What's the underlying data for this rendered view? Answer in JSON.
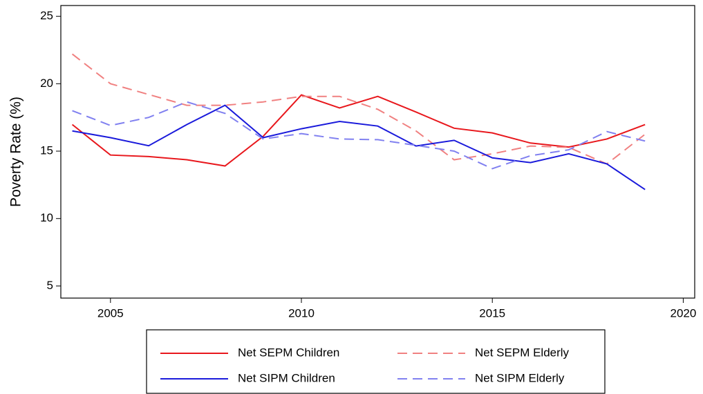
{
  "chart_data": {
    "type": "line",
    "y_label": "Poverty Rate (%)",
    "x": [
      2004,
      2005,
      2006,
      2007,
      2008,
      2009,
      2010,
      2011,
      2012,
      2013,
      2014,
      2015,
      2016,
      2017,
      2018,
      2019
    ],
    "xlim": [
      2003.7,
      2020.3
    ],
    "xticks": [
      2005,
      2010,
      2015,
      2020
    ],
    "ylim": [
      4.1,
      25.8
    ],
    "yticks": [
      5,
      10,
      15,
      20,
      25
    ],
    "legend": "bottom",
    "series": [
      {
        "name": "Net SEPM Children",
        "color": "#e8171c",
        "style": "solid",
        "values": [
          16.97,
          14.71,
          14.6,
          14.36,
          13.9,
          16.1,
          19.17,
          18.2,
          19.06,
          17.9,
          16.7,
          16.35,
          15.6,
          15.3,
          15.9,
          16.97
        ]
      },
      {
        "name": "Net SEPM Elderly",
        "color": "#f08080",
        "style": "dashed",
        "values": [
          22.2,
          20.0,
          19.2,
          18.4,
          18.4,
          18.65,
          19.06,
          19.06,
          18.1,
          16.5,
          14.36,
          14.8,
          15.38,
          15.28,
          14.05,
          16.25
        ]
      },
      {
        "name": "Net SIPM Children",
        "color": "#1a1adb",
        "style": "solid",
        "values": [
          16.5,
          16.0,
          15.4,
          16.97,
          18.4,
          16.0,
          16.66,
          17.2,
          16.86,
          15.38,
          15.8,
          14.5,
          14.15,
          14.8,
          14.05,
          12.15
        ]
      },
      {
        "name": "Net SIPM Elderly",
        "color": "#8080f0",
        "style": "dashed",
        "values": [
          18.0,
          16.9,
          17.5,
          18.65,
          17.8,
          15.9,
          16.3,
          15.9,
          15.85,
          15.43,
          15.0,
          13.7,
          14.66,
          15.1,
          16.45,
          15.75
        ]
      }
    ]
  }
}
